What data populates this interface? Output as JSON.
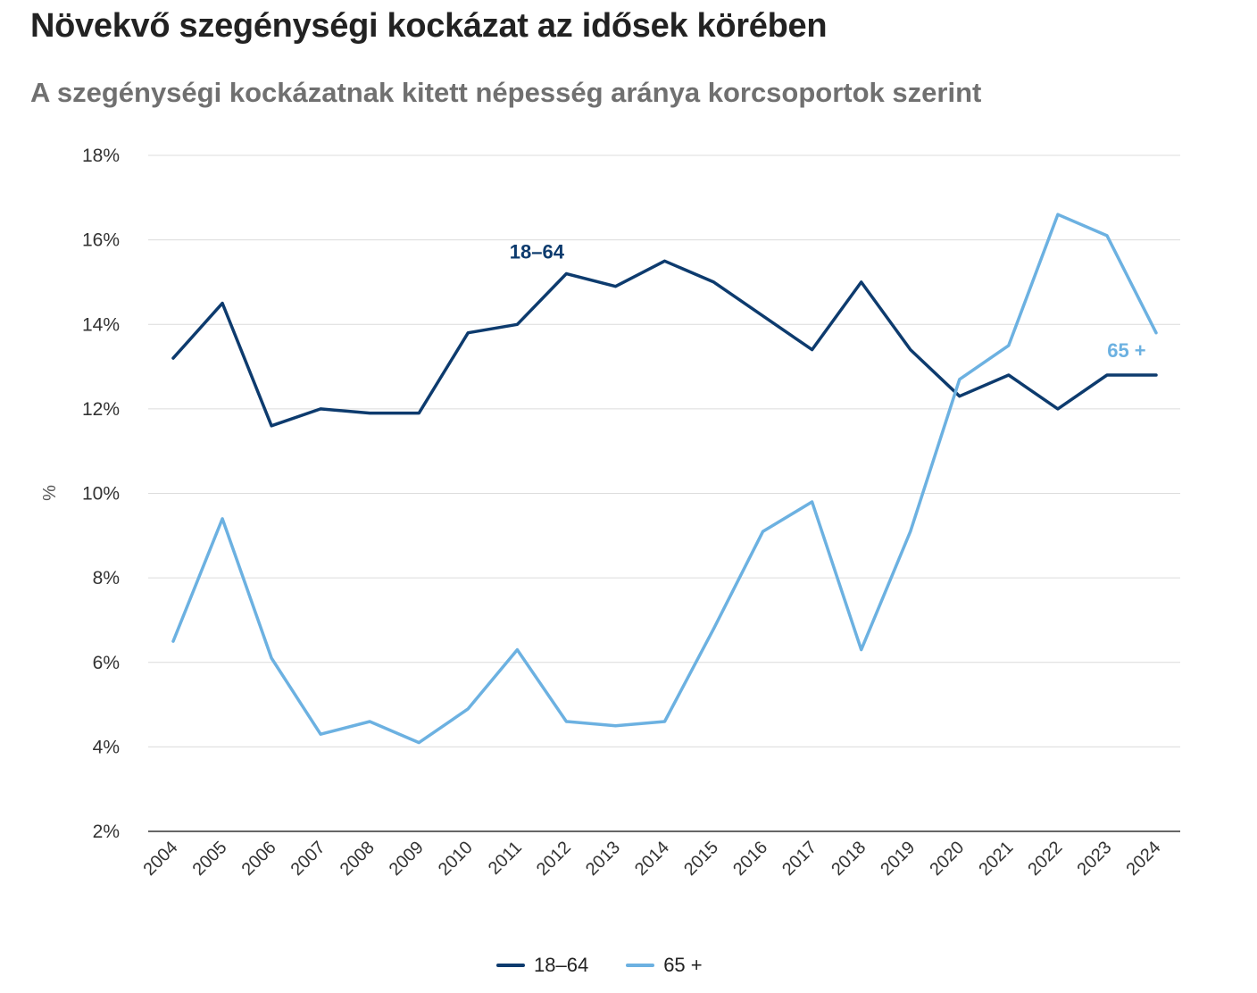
{
  "title": "Növekvő szegénységi kockázat az idősek körében",
  "subtitle": "A szegénységi kockázatnak kitett népesség aránya korcsoportok szerint",
  "chart_data": {
    "type": "line",
    "x": [
      "2004",
      "2005",
      "2006",
      "2007",
      "2008",
      "2009",
      "2010",
      "2011",
      "2012",
      "2013",
      "2014",
      "2015",
      "2016",
      "2017",
      "2018",
      "2019",
      "2020",
      "2021",
      "2022",
      "2023",
      "2024"
    ],
    "series": [
      {
        "name": "18–64",
        "color": "#0d3b6e",
        "values": [
          13.2,
          14.5,
          11.6,
          12.0,
          11.9,
          11.9,
          13.8,
          14.0,
          15.2,
          14.9,
          15.5,
          15.0,
          14.2,
          13.4,
          15.0,
          13.4,
          12.3,
          12.8,
          12.0,
          12.8,
          12.8
        ],
        "annotation": {
          "label": "18–64",
          "at": "2011"
        }
      },
      {
        "name": "65 +",
        "color": "#6cb1e1",
        "values": [
          6.5,
          9.4,
          6.1,
          4.3,
          4.6,
          4.1,
          4.9,
          6.3,
          4.6,
          4.5,
          4.6,
          6.8,
          9.1,
          9.8,
          6.3,
          9.1,
          12.7,
          13.5,
          16.6,
          16.1,
          13.8
        ],
        "annotation": {
          "label": "65 +",
          "at": "2023"
        }
      }
    ],
    "ylabel": "%",
    "xlabel": "",
    "ylim": [
      2,
      18
    ],
    "yticks": [
      2,
      4,
      6,
      8,
      10,
      12,
      14,
      16,
      18
    ],
    "ytick_suffix": "%",
    "grid": true,
    "legend": "bottom-center"
  },
  "legend": {
    "items": [
      {
        "label": "18–64",
        "color": "#0d3b6e"
      },
      {
        "label": "65 +",
        "color": "#6cb1e1"
      }
    ]
  }
}
